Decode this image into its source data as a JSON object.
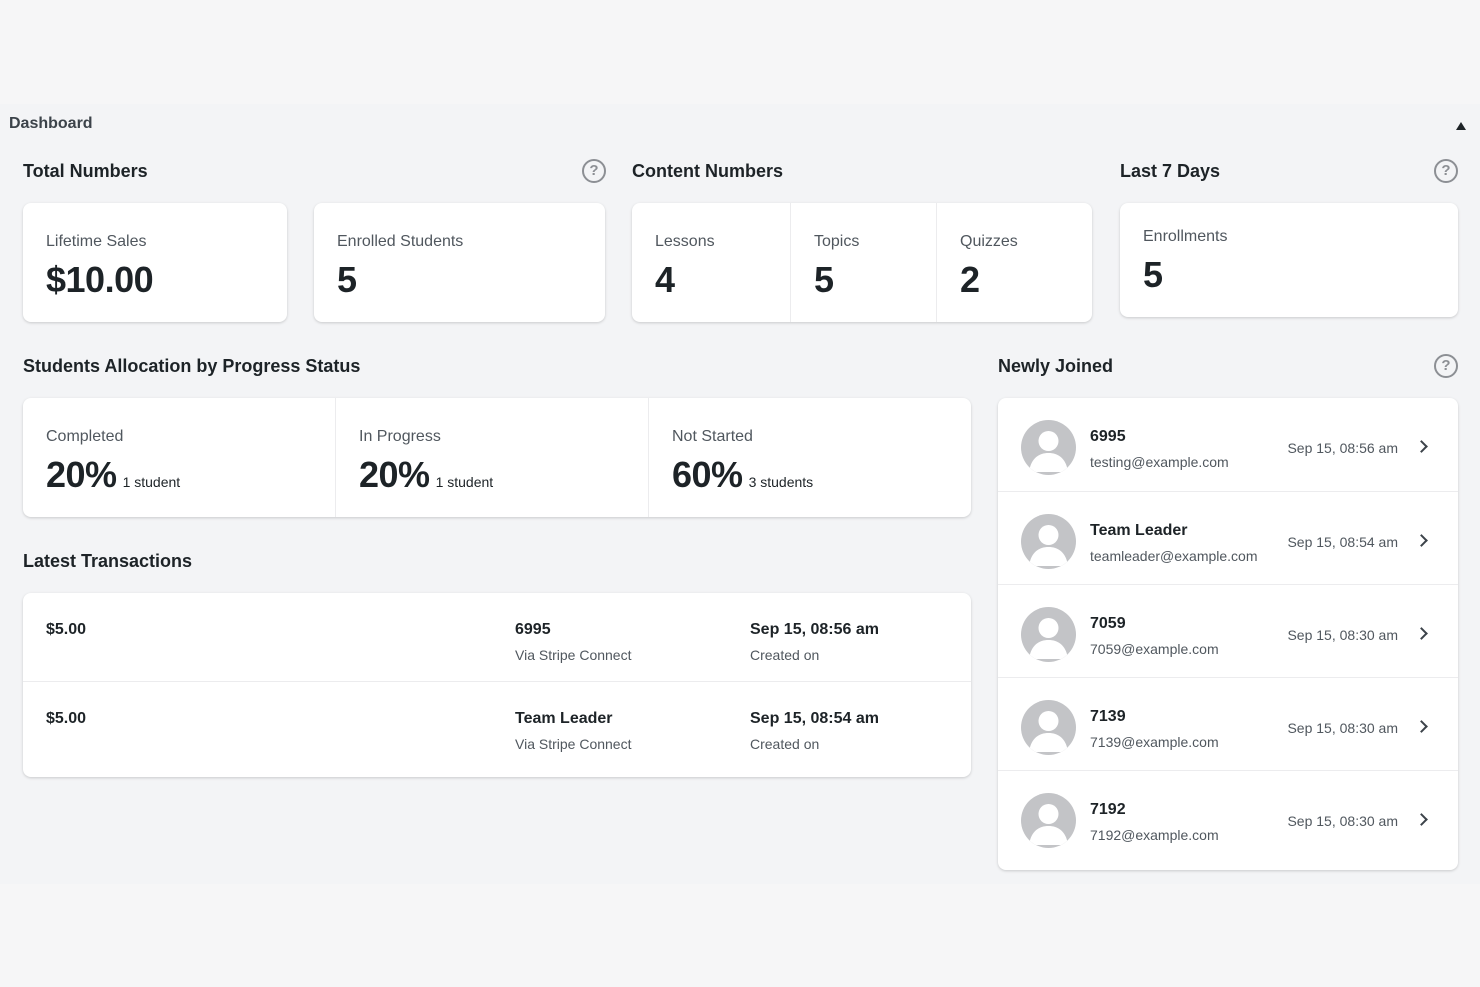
{
  "panel": {
    "title": "Dashboard"
  },
  "total_numbers": {
    "title": "Total Numbers",
    "cards": [
      {
        "label": "Lifetime Sales",
        "value": "$10.00"
      },
      {
        "label": "Enrolled Students",
        "value": "5"
      }
    ]
  },
  "content_numbers": {
    "title": "Content Numbers",
    "cells": [
      {
        "label": "Lessons",
        "value": "4"
      },
      {
        "label": "Topics",
        "value": "5"
      },
      {
        "label": "Quizzes",
        "value": "2"
      }
    ]
  },
  "last_7_days": {
    "title": "Last 7 Days",
    "label": "Enrollments",
    "value": "5"
  },
  "progress": {
    "title": "Students Allocation by Progress Status",
    "cells": [
      {
        "label": "Completed",
        "percent": "20%",
        "count": "1 student"
      },
      {
        "label": "In Progress",
        "percent": "20%",
        "count": "1 student"
      },
      {
        "label": "Not Started",
        "percent": "60%",
        "count": "3 students"
      }
    ]
  },
  "transactions": {
    "title": "Latest Transactions",
    "rows": [
      {
        "amount": "$5.00",
        "user": "6995",
        "method": "Via Stripe Connect",
        "date": "Sep 15, 08:56 am",
        "date_label": "Created on"
      },
      {
        "amount": "$5.00",
        "user": "Team Leader",
        "method": "Via Stripe Connect",
        "date": "Sep 15, 08:54 am",
        "date_label": "Created on"
      }
    ]
  },
  "newly_joined": {
    "title": "Newly Joined",
    "users": [
      {
        "name": "6995",
        "email": "testing@example.com",
        "date": "Sep 15, 08:56 am"
      },
      {
        "name": "Team Leader",
        "email": "teamleader@example.com",
        "date": "Sep 15, 08:54 am"
      },
      {
        "name": "7059",
        "email": "7059@example.com",
        "date": "Sep 15, 08:30 am"
      },
      {
        "name": "7139",
        "email": "7139@example.com",
        "date": "Sep 15, 08:30 am"
      },
      {
        "name": "7192",
        "email": "7192@example.com",
        "date": "Sep 15, 08:30 am"
      }
    ]
  },
  "icons": {
    "help": "help-circle-icon",
    "collapse": "triangle-up-icon",
    "chevron": "chevron-right-icon",
    "avatar": "default-avatar-icon"
  },
  "help_glyph": "?"
}
